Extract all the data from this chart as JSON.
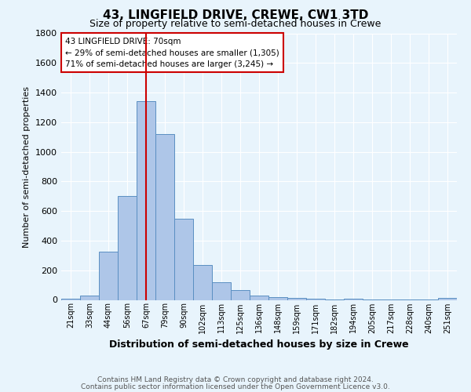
{
  "title": "43, LINGFIELD DRIVE, CREWE, CW1 3TD",
  "subtitle": "Size of property relative to semi-detached houses in Crewe",
  "xlabel": "Distribution of semi-detached houses by size in Crewe",
  "ylabel": "Number of semi-detached properties",
  "footnote1": "Contains HM Land Registry data © Crown copyright and database right 2024.",
  "footnote2": "Contains public sector information licensed under the Open Government Licence v3.0.",
  "categories": [
    "21sqm",
    "33sqm",
    "44sqm",
    "56sqm",
    "67sqm",
    "79sqm",
    "90sqm",
    "102sqm",
    "113sqm",
    "125sqm",
    "136sqm",
    "148sqm",
    "159sqm",
    "171sqm",
    "182sqm",
    "194sqm",
    "205sqm",
    "217sqm",
    "228sqm",
    "240sqm",
    "251sqm"
  ],
  "values": [
    10,
    30,
    325,
    700,
    1340,
    1120,
    550,
    235,
    120,
    65,
    30,
    20,
    15,
    10,
    5,
    10,
    2,
    5,
    2,
    2,
    15
  ],
  "bar_color": "#aec6e8",
  "bar_edge_color": "#5a8fc2",
  "bg_color": "#e8f4fc",
  "grid_color": "#ffffff",
  "ylim": [
    0,
    1800
  ],
  "yticks": [
    0,
    200,
    400,
    600,
    800,
    1000,
    1200,
    1400,
    1600,
    1800
  ],
  "red_line_x": 4,
  "annotation_title": "43 LINGFIELD DRIVE: 70sqm",
  "annotation_line1": "← 29% of semi-detached houses are smaller (1,305)",
  "annotation_line2": "71% of semi-detached houses are larger (3,245) →",
  "annotation_box_color": "#ffffff",
  "annotation_box_edge": "#cc0000",
  "red_line_color": "#cc0000"
}
